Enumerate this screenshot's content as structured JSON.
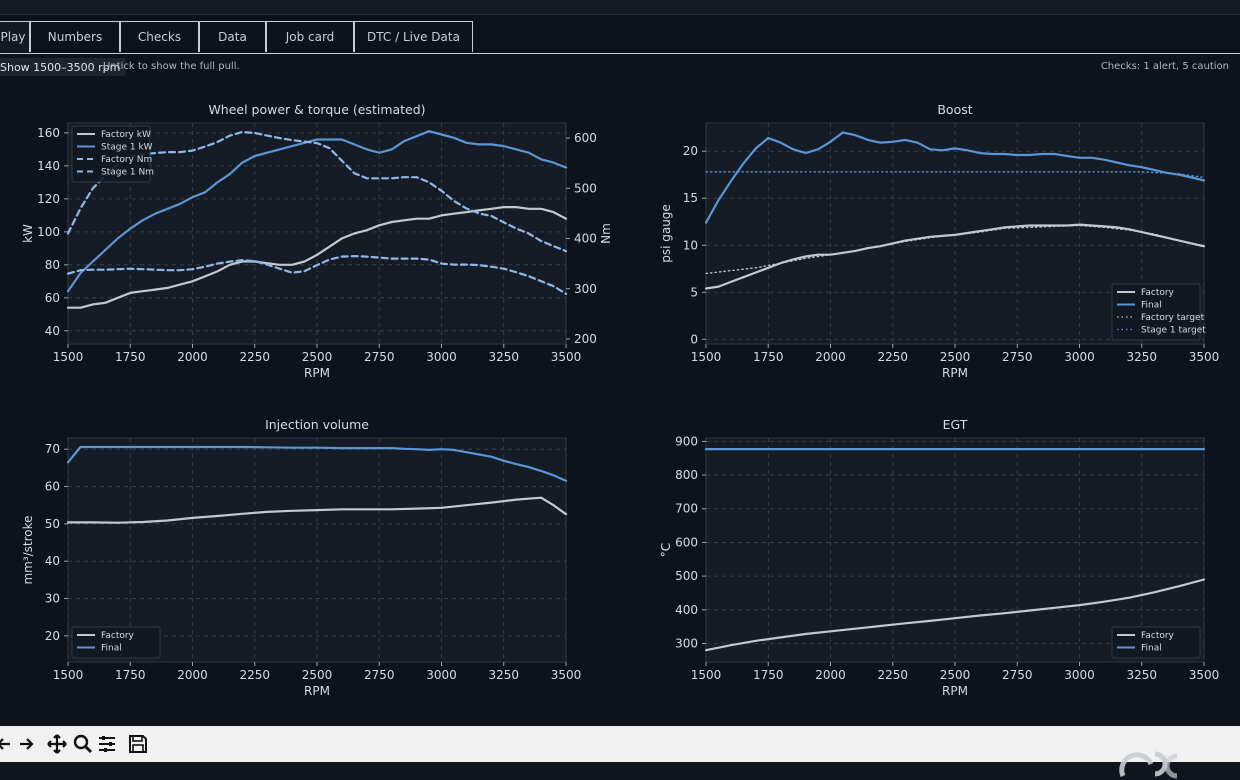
{
  "tabs": [
    {
      "label": "Play",
      "active": true
    },
    {
      "label": "Numbers"
    },
    {
      "label": "Checks"
    },
    {
      "label": "Data"
    },
    {
      "label": "Job card"
    },
    {
      "label": "DTC / Live Data"
    }
  ],
  "range_toggle": {
    "label": "Show 1500–3500 rpm"
  },
  "range_hint": "Untick to show the full pull.",
  "checks_summary": "Checks: 1 alert, 5 caution",
  "colors": {
    "factory": "#c3c7ce",
    "final": "#5b95d6",
    "grid": "#3a4555",
    "panel": "#151c26",
    "text": "#d6dbe3"
  },
  "toolbar": {
    "icons": [
      "back-arrow-icon",
      "forward-arrow-icon",
      "pan-icon",
      "zoom-icon",
      "configure-subplots-icon",
      "save-icon"
    ]
  },
  "chart_data": [
    {
      "type": "line",
      "title": "Wheel power & torque (estimated)",
      "xlabel": "RPM",
      "ylabel": "kW",
      "y2label": "Nm",
      "xlim": [
        1500,
        3500
      ],
      "ylim": [
        32,
        166
      ],
      "y2lim": [
        190,
        630
      ],
      "xticks": [
        1500,
        1750,
        2000,
        2250,
        2500,
        2750,
        3000,
        3250,
        3500
      ],
      "yticks": [
        40,
        60,
        80,
        100,
        120,
        140,
        160
      ],
      "y2ticks": [
        200,
        300,
        400,
        500,
        600
      ],
      "legend_position": "top-left",
      "series": [
        {
          "name": "Factory kW",
          "axis": "left",
          "style": "solid",
          "color": "#c3c7ce",
          "x": [
            1500,
            1550,
            1600,
            1650,
            1700,
            1750,
            1800,
            1850,
            1900,
            1950,
            2000,
            2050,
            2100,
            2150,
            2200,
            2250,
            2300,
            2350,
            2400,
            2450,
            2500,
            2550,
            2600,
            2650,
            2700,
            2750,
            2800,
            2850,
            2900,
            2950,
            3000,
            3050,
            3100,
            3150,
            3200,
            3250,
            3300,
            3350,
            3400,
            3450,
            3500
          ],
          "y": [
            54,
            54,
            56,
            57,
            60,
            63,
            64,
            65,
            66,
            68,
            70,
            73,
            76,
            80,
            82,
            82,
            81,
            80,
            80,
            82,
            86,
            91,
            96,
            99,
            101,
            104,
            106,
            107,
            108,
            108,
            110,
            111,
            112,
            113,
            114,
            115,
            115,
            114,
            114,
            112,
            108
          ]
        },
        {
          "name": "Stage 1 kW",
          "axis": "left",
          "style": "solid",
          "color": "#5b95d6",
          "x": [
            1500,
            1550,
            1600,
            1650,
            1700,
            1750,
            1800,
            1850,
            1900,
            1950,
            2000,
            2050,
            2100,
            2150,
            2200,
            2250,
            2300,
            2350,
            2400,
            2450,
            2500,
            2550,
            2600,
            2650,
            2700,
            2750,
            2800,
            2850,
            2900,
            2950,
            3000,
            3050,
            3100,
            3150,
            3200,
            3250,
            3300,
            3350,
            3400,
            3450,
            3500
          ],
          "y": [
            64,
            75,
            82,
            89,
            96,
            102,
            107,
            111,
            114,
            117,
            121,
            124,
            130,
            135,
            142,
            146,
            148,
            150,
            152,
            154,
            156,
            156,
            156,
            153,
            150,
            148,
            150,
            155,
            158,
            161,
            159,
            157,
            154,
            153,
            153,
            152,
            150,
            148,
            144,
            142,
            139
          ]
        },
        {
          "name": "Factory Nm",
          "axis": "right",
          "style": "dashed",
          "color": "#8fb7e6",
          "x": [
            1500,
            1550,
            1600,
            1650,
            1700,
            1750,
            1800,
            1850,
            1900,
            1950,
            2000,
            2050,
            2100,
            2150,
            2200,
            2250,
            2300,
            2350,
            2400,
            2450,
            2500,
            2550,
            2600,
            2650,
            2700,
            2750,
            2800,
            2850,
            2900,
            2950,
            3000,
            3050,
            3100,
            3150,
            3200,
            3250,
            3300,
            3350,
            3400,
            3450,
            3500
          ],
          "y": [
            330,
            337,
            338,
            338,
            339,
            340,
            339,
            338,
            337,
            337,
            339,
            344,
            350,
            354,
            357,
            355,
            348,
            340,
            332,
            335,
            347,
            358,
            364,
            365,
            364,
            362,
            360,
            360,
            360,
            358,
            350,
            348,
            348,
            347,
            344,
            340,
            333,
            325,
            315,
            305,
            290
          ]
        },
        {
          "name": "Stage 1 Nm",
          "axis": "right",
          "style": "dashed",
          "color": "#8fb7e6",
          "x": [
            1500,
            1550,
            1600,
            1650,
            1700,
            1750,
            1800,
            1850,
            1900,
            1950,
            2000,
            2050,
            2100,
            2150,
            2200,
            2250,
            2300,
            2350,
            2400,
            2450,
            2500,
            2550,
            2600,
            2650,
            2700,
            2750,
            2800,
            2850,
            2900,
            2950,
            3000,
            3050,
            3100,
            3150,
            3200,
            3250,
            3300,
            3350,
            3400,
            3450,
            3500
          ],
          "y": [
            410,
            460,
            500,
            525,
            548,
            563,
            568,
            570,
            572,
            572,
            575,
            583,
            592,
            605,
            612,
            610,
            605,
            600,
            596,
            593,
            590,
            580,
            555,
            530,
            520,
            520,
            520,
            522,
            522,
            512,
            495,
            475,
            460,
            450,
            445,
            432,
            420,
            410,
            395,
            385,
            375
          ]
        }
      ]
    },
    {
      "type": "line",
      "title": "Boost",
      "xlabel": "RPM",
      "ylabel": "psi gauge",
      "xlim": [
        1500,
        3500
      ],
      "ylim": [
        -0.5,
        23
      ],
      "xticks": [
        1500,
        1750,
        2000,
        2250,
        2500,
        2750,
        3000,
        3250,
        3500
      ],
      "yticks": [
        0,
        5,
        10,
        15,
        20
      ],
      "legend_position": "bottom-right",
      "series": [
        {
          "name": "Factory",
          "style": "solid",
          "color": "#c3c7ce",
          "x": [
            1500,
            1550,
            1600,
            1650,
            1700,
            1750,
            1800,
            1850,
            1900,
            1950,
            2000,
            2050,
            2100,
            2150,
            2200,
            2250,
            2300,
            2350,
            2400,
            2450,
            2500,
            2550,
            2600,
            2650,
            2700,
            2750,
            2800,
            2850,
            2900,
            2950,
            3000,
            3050,
            3100,
            3150,
            3200,
            3250,
            3300,
            3350,
            3400,
            3450,
            3500
          ],
          "y": [
            5.4,
            5.6,
            6.1,
            6.6,
            7.1,
            7.6,
            8.1,
            8.5,
            8.8,
            9.0,
            9.0,
            9.2,
            9.4,
            9.7,
            9.9,
            10.2,
            10.5,
            10.7,
            10.9,
            11.0,
            11.1,
            11.3,
            11.5,
            11.7,
            11.9,
            12.0,
            12.1,
            12.1,
            12.1,
            12.1,
            12.2,
            12.1,
            12.0,
            11.9,
            11.7,
            11.4,
            11.1,
            10.8,
            10.5,
            10.2,
            9.9
          ]
        },
        {
          "name": "Final",
          "style": "solid",
          "color": "#5b95d6",
          "x": [
            1500,
            1550,
            1600,
            1650,
            1700,
            1750,
            1800,
            1850,
            1900,
            1950,
            2000,
            2050,
            2100,
            2150,
            2200,
            2250,
            2300,
            2350,
            2400,
            2450,
            2500,
            2550,
            2600,
            2650,
            2700,
            2750,
            2800,
            2850,
            2900,
            2950,
            3000,
            3050,
            3100,
            3150,
            3200,
            3250,
            3300,
            3350,
            3400,
            3450,
            3500
          ],
          "y": [
            12.4,
            14.8,
            16.8,
            18.7,
            20.3,
            21.4,
            20.9,
            20.2,
            19.8,
            20.2,
            21.0,
            22.0,
            21.7,
            21.2,
            20.9,
            21.0,
            21.2,
            20.9,
            20.2,
            20.1,
            20.3,
            20.1,
            19.8,
            19.7,
            19.7,
            19.6,
            19.6,
            19.7,
            19.7,
            19.5,
            19.3,
            19.3,
            19.1,
            18.8,
            18.5,
            18.3,
            18.0,
            17.7,
            17.5,
            17.2,
            16.9
          ]
        },
        {
          "name": "Factory target",
          "style": "dotted",
          "color": "#c3c7ce",
          "x": [
            1500,
            1600,
            1700,
            1800,
            1900,
            2000,
            2100,
            2200,
            2300,
            2400,
            2500,
            2600,
            2700,
            2800,
            2900,
            3000,
            3100,
            3200,
            3300,
            3400,
            3500
          ],
          "y": [
            7.0,
            7.3,
            7.6,
            8.1,
            8.6,
            9.0,
            9.4,
            9.9,
            10.4,
            10.8,
            11.1,
            11.4,
            11.8,
            11.9,
            12.0,
            12.1,
            11.9,
            11.6,
            11.2,
            10.5,
            9.8
          ]
        },
        {
          "name": "Stage 1 target",
          "style": "dotted",
          "color": "#5b95d6",
          "x": [
            1500,
            1750,
            2000,
            2250,
            2500,
            2750,
            3000,
            3250,
            3400,
            3500
          ],
          "y": [
            17.8,
            17.8,
            17.8,
            17.8,
            17.8,
            17.8,
            17.8,
            17.8,
            17.6,
            17.2
          ]
        }
      ]
    },
    {
      "type": "line",
      "title": "Injection volume",
      "xlabel": "RPM",
      "ylabel": "mm³/stroke",
      "xlim": [
        1500,
        3500
      ],
      "ylim": [
        13,
        73
      ],
      "xticks": [
        1500,
        1750,
        2000,
        2250,
        2500,
        2750,
        3000,
        3250,
        3500
      ],
      "yticks": [
        20,
        30,
        40,
        50,
        60,
        70
      ],
      "legend_position": "bottom-left",
      "series": [
        {
          "name": "Factory",
          "style": "solid",
          "color": "#c3c7ce",
          "x": [
            1500,
            1600,
            1700,
            1800,
            1900,
            2000,
            2100,
            2200,
            2300,
            2400,
            2500,
            2600,
            2700,
            2800,
            2900,
            3000,
            3100,
            3200,
            3300,
            3400,
            3450,
            3500
          ],
          "y": [
            50.4,
            50.4,
            50.3,
            50.5,
            50.9,
            51.6,
            52.1,
            52.7,
            53.2,
            53.5,
            53.7,
            53.9,
            53.9,
            53.9,
            54.1,
            54.3,
            55.0,
            55.7,
            56.5,
            57.0,
            55.0,
            52.6
          ]
        },
        {
          "name": "Final",
          "style": "solid",
          "color": "#5b95d6",
          "x": [
            1500,
            1550,
            1600,
            1700,
            1800,
            1900,
            2000,
            2100,
            2200,
            2300,
            2400,
            2500,
            2600,
            2700,
            2800,
            2850,
            2900,
            2950,
            3000,
            3050,
            3100,
            3150,
            3200,
            3250,
            3300,
            3350,
            3400,
            3450,
            3500
          ],
          "y": [
            66.5,
            70.6,
            70.6,
            70.6,
            70.6,
            70.6,
            70.6,
            70.6,
            70.6,
            70.5,
            70.4,
            70.4,
            70.3,
            70.3,
            70.3,
            70.1,
            70.0,
            69.8,
            70.0,
            69.8,
            69.2,
            68.6,
            68.0,
            66.9,
            66.0,
            65.2,
            64.2,
            63.0,
            61.5
          ]
        }
      ]
    },
    {
      "type": "line",
      "title": "EGT",
      "xlabel": "RPM",
      "ylabel": "°C",
      "xlim": [
        1500,
        3500
      ],
      "ylim": [
        245,
        910
      ],
      "xticks": [
        1500,
        1750,
        2000,
        2250,
        2500,
        2750,
        3000,
        3250,
        3500
      ],
      "yticks": [
        300,
        400,
        500,
        600,
        700,
        800,
        900
      ],
      "legend_position": "bottom-right",
      "series": [
        {
          "name": "Factory",
          "style": "solid",
          "color": "#c3c7ce",
          "x": [
            1500,
            1600,
            1700,
            1800,
            1900,
            2000,
            2100,
            2200,
            2300,
            2400,
            2500,
            2600,
            2700,
            2800,
            2900,
            3000,
            3100,
            3200,
            3300,
            3400,
            3500
          ],
          "y": [
            280,
            295,
            308,
            318,
            328,
            336,
            344,
            352,
            360,
            367,
            375,
            383,
            390,
            398,
            406,
            414,
            424,
            436,
            452,
            470,
            490
          ]
        },
        {
          "name": "Final",
          "style": "solid",
          "color": "#5b95d6",
          "x": [
            1500,
            2000,
            2500,
            3000,
            3500
          ],
          "y": [
            877,
            877,
            877,
            877,
            877
          ]
        }
      ]
    }
  ]
}
